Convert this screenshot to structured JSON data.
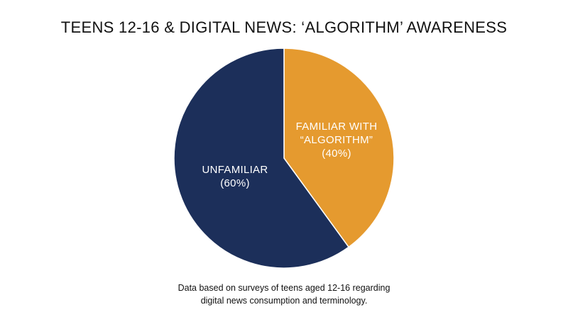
{
  "chart_data": {
    "type": "pie",
    "title": "TEENS 12-16 & DIGITAL NEWS: ‘ALGORITHM’ AWARENESS",
    "slices": [
      {
        "name": "FAMILIAR WITH “ALGORITHM”",
        "value": 40,
        "label_lines": [
          "FAMILIAR WITH",
          "“ALGORITHM”",
          "(40%)"
        ],
        "color": "#E59A2F"
      },
      {
        "name": "UNFAMILIAR",
        "value": 60,
        "label_lines": [
          "UNFAMILIAR",
          "(60%)"
        ],
        "color": "#1C2F5A"
      }
    ],
    "start": "12 o'clock",
    "direction": "clockwise"
  },
  "footnote": {
    "line1": "Data based on surveys of teens aged 12-16 regarding",
    "line2": "digital news consumption and terminology."
  }
}
